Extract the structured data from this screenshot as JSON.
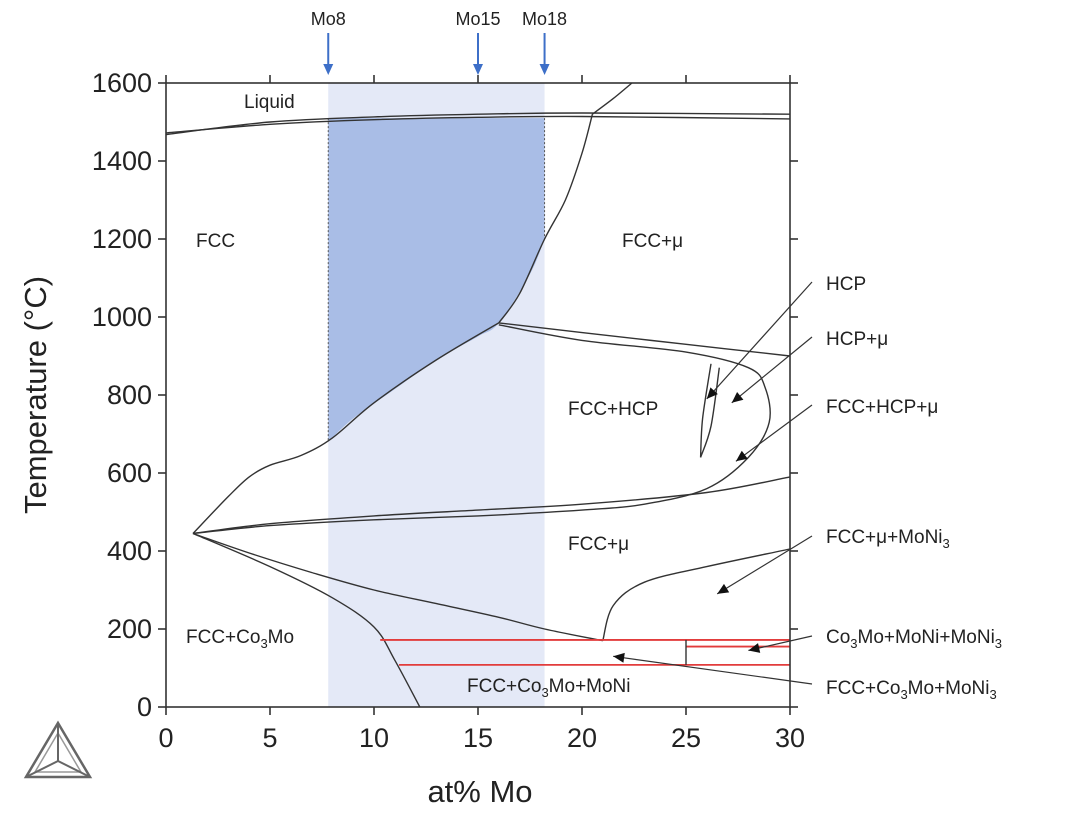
{
  "chart_data": {
    "type": "phase_diagram",
    "xlabel": "at% Mo",
    "ylabel": "Temperature (°C)",
    "xlim": [
      0,
      30
    ],
    "ylim": [
      0,
      1600
    ],
    "xticks": [
      "0",
      "5",
      "10",
      "15",
      "20",
      "25",
      "30"
    ],
    "yticks": [
      "0",
      "200",
      "400",
      "600",
      "800",
      "1000",
      "1200",
      "1400",
      "1600"
    ],
    "composition_markers": [
      {
        "label": "Mo8",
        "x": 7.8
      },
      {
        "label": "Mo15",
        "x": 15
      },
      {
        "label": "Mo18",
        "x": 18.2
      }
    ],
    "highlight_band": {
      "x_range": [
        7.8,
        18.2
      ],
      "color": "#e4e9f7"
    },
    "fcc_single_phase_fill": {
      "color": "#a9bde6",
      "boundary": [
        [
          7.8,
          680
        ],
        [
          9,
          740
        ],
        [
          11,
          815
        ],
        [
          13,
          890
        ],
        [
          15,
          950
        ],
        [
          16,
          985
        ],
        [
          17.5,
          1110
        ],
        [
          18.2,
          1200
        ],
        [
          18.2,
          1510
        ],
        [
          7.8,
          1510
        ]
      ]
    },
    "phase_boundaries": [
      {
        "name": "liquidus",
        "points": [
          [
            0,
            1468
          ],
          [
            5,
            1500
          ],
          [
            10,
            1513
          ],
          [
            15,
            1520
          ],
          [
            20,
            1523
          ],
          [
            30,
            1520
          ]
        ]
      },
      {
        "name": "solidus",
        "points": [
          [
            0,
            1472
          ],
          [
            5,
            1494
          ],
          [
            10,
            1506
          ],
          [
            15,
            1512
          ],
          [
            20,
            1514
          ],
          [
            30,
            1508
          ]
        ]
      },
      {
        "name": "liquid-mu",
        "points": [
          [
            20.5,
            1520
          ],
          [
            21.5,
            1560
          ],
          [
            22.4,
            1600
          ]
        ]
      },
      {
        "name": "fcc-solvus-high",
        "points": [
          [
            20.5,
            1520
          ],
          [
            20,
            1420
          ],
          [
            19.2,
            1300
          ],
          [
            18.2,
            1200
          ],
          [
            17,
            1060
          ],
          [
            16,
            985
          ]
        ]
      },
      {
        "name": "fcc-solvus-low",
        "points": [
          [
            16,
            985
          ],
          [
            13,
            890
          ],
          [
            10,
            780
          ],
          [
            8,
            690
          ],
          [
            6.5,
            645
          ],
          [
            5,
            620
          ],
          [
            4,
            590
          ],
          [
            3,
            540
          ],
          [
            1.3,
            445
          ]
        ]
      },
      {
        "name": "fcc-hcp-solvus",
        "points": [
          [
            1.3,
            445
          ],
          [
            5,
            470
          ],
          [
            10,
            490
          ],
          [
            15,
            505
          ],
          [
            20,
            520
          ],
          [
            26,
            550
          ],
          [
            30,
            590
          ]
        ]
      },
      {
        "name": "fcc-mu-lower",
        "points": [
          [
            1.3,
            445
          ],
          [
            5,
            465
          ],
          [
            10,
            480
          ],
          [
            15,
            490
          ],
          [
            20,
            505
          ],
          [
            23,
            520
          ],
          [
            26,
            560
          ],
          [
            28,
            640
          ],
          [
            29,
            730
          ],
          [
            28.8,
            820
          ],
          [
            28,
            870
          ],
          [
            25,
            910
          ],
          [
            20,
            940
          ],
          [
            16,
            980
          ]
        ]
      },
      {
        "name": "hcp-mu-upper",
        "points": [
          [
            16,
            985
          ],
          [
            20,
            960
          ],
          [
            25,
            930
          ],
          [
            30,
            900
          ]
        ]
      },
      {
        "name": "hcp-left",
        "points": [
          [
            25.7,
            640
          ],
          [
            25.8,
            740
          ],
          [
            26.2,
            880
          ]
        ]
      },
      {
        "name": "hcp-right",
        "points": [
          [
            25.7,
            640
          ],
          [
            26.2,
            720
          ],
          [
            26.6,
            870
          ]
        ]
      },
      {
        "name": "co3mo-solvus",
        "points": [
          [
            1.3,
            445
          ],
          [
            4,
            395
          ],
          [
            7,
            345
          ],
          [
            10,
            300
          ],
          [
            13,
            265
          ],
          [
            16,
            230
          ],
          [
            18.2,
            200
          ],
          [
            21,
            170
          ]
        ]
      },
      {
        "name": "co3mo-upper",
        "points": [
          [
            1.3,
            445
          ],
          [
            5,
            360
          ],
          [
            8,
            280
          ],
          [
            10,
            205
          ],
          [
            11,
            120
          ],
          [
            12.2,
            0
          ]
        ]
      },
      {
        "name": "mu-moni3",
        "points": [
          [
            21,
            170
          ],
          [
            21.5,
            260
          ],
          [
            23,
            320
          ],
          [
            26,
            360
          ],
          [
            30,
            405
          ]
        ]
      }
    ],
    "eutectoid_lines_red": [
      {
        "y": 172,
        "x_range": [
          10.3,
          30
        ]
      },
      {
        "y": 108,
        "x_range": [
          11.2,
          30
        ]
      }
    ],
    "vertical_segment": {
      "x": 25,
      "y_range": [
        108,
        172
      ]
    },
    "mid_red_segment": {
      "y": 155,
      "x_range": [
        25,
        30
      ]
    },
    "region_labels": [
      {
        "text": "Liquid",
        "x": 3.8,
        "y": 1545
      },
      {
        "text": "FCC",
        "x": 2.6,
        "y": 1200
      },
      {
        "text": "FCC+μ",
        "x": 24.0,
        "y": 1200
      },
      {
        "text": "FCC+HCP",
        "x": 21.8,
        "y": 760
      },
      {
        "text": "FCC+μ",
        "x": 21.8,
        "y": 400
      },
      {
        "text": "FCC+Co3Mo",
        "x": 3.6,
        "y": 175
      },
      {
        "text": "FCC+Co3Mo+MoNi",
        "x": 16.3,
        "y": 50
      }
    ],
    "callouts": [
      {
        "text": "HCP",
        "target": [
          26,
          790
        ]
      },
      {
        "text": "HCP+μ",
        "target": [
          27.2,
          780
        ]
      },
      {
        "text": "FCC+HCP+μ",
        "target": [
          27.4,
          630
        ]
      },
      {
        "text": "FCC+μ+MoNi3",
        "target": [
          26.5,
          290
        ]
      },
      {
        "text": "Co3Mo+MoNi+MoNi3",
        "target": [
          28.0,
          145
        ]
      },
      {
        "text": "FCC+Co3Mo+MoNi3",
        "target": [
          21.5,
          130
        ]
      }
    ]
  },
  "labels": {
    "xlabel": "at% Mo",
    "ylabel": "Temperature (°C)",
    "liquid": "Liquid",
    "fcc": "FCC",
    "fcc_mu_top": "FCC+μ",
    "fcc_hcp": "FCC+HCP",
    "fcc_mu_bottom": "FCC+μ",
    "fcc_co3mo_a": "FCC+Co",
    "fcc_co3mo_sub": "3",
    "fcc_co3mo_b": "Mo",
    "fcc_co3mo_moni": "FCC+Co",
    "fcc_co3mo_moni_sub": "3",
    "fcc_co3mo_moni_b": "Mo+MoNi",
    "hcp": "HCP",
    "hcp_mu": "HCP+μ",
    "fcc_hcp_mu": "FCC+HCP+μ",
    "fcc_mu_moni3_a": "FCC+μ+MoNi",
    "fcc_mu_moni3_sub": "3",
    "co3mo_moni_moni3_a": "Co",
    "co3mo_moni_moni3_sub1": "3",
    "co3mo_moni_moni3_b": "Mo+MoNi+MoNi",
    "co3mo_moni_moni3_sub2": "3",
    "fcc_co3mo_moni3_a": "FCC+Co",
    "fcc_co3mo_moni3_sub1": "3",
    "fcc_co3mo_moni3_b": "Mo+MoNi",
    "fcc_co3mo_moni3_sub2": "3"
  }
}
